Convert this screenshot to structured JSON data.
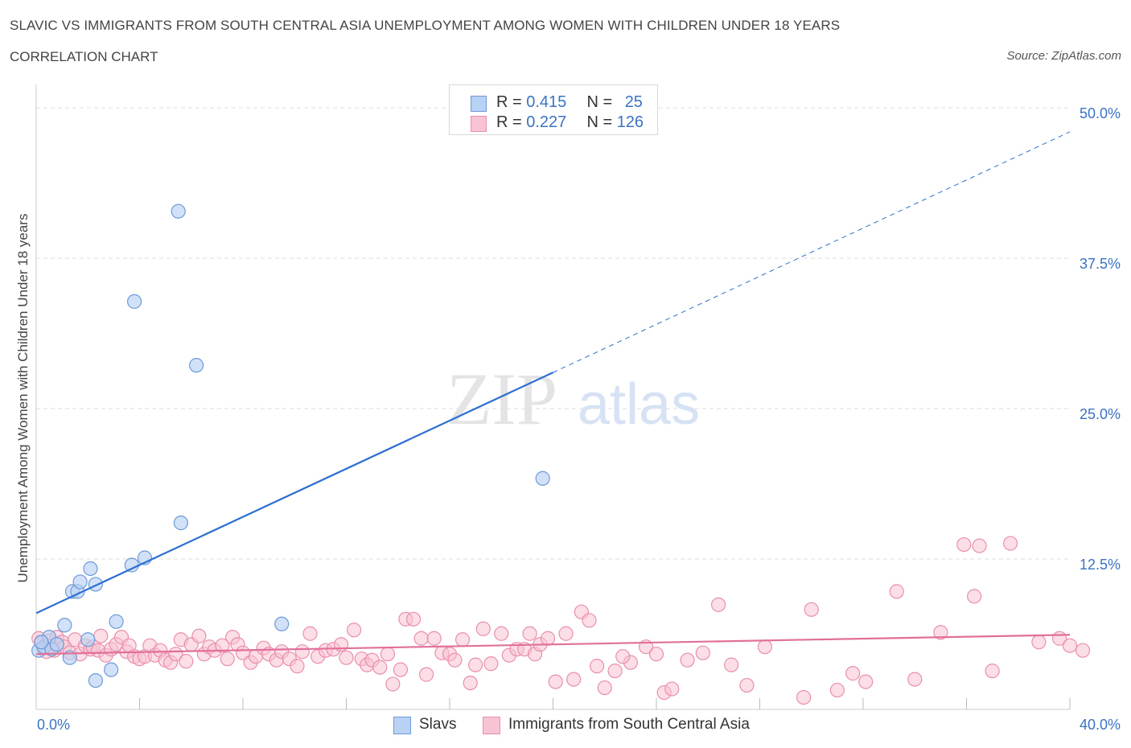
{
  "header": {
    "title": "SLAVIC VS IMMIGRANTS FROM SOUTH CENTRAL ASIA UNEMPLOYMENT AMONG WOMEN WITH CHILDREN UNDER 18 YEARS",
    "subtitle": "CORRELATION CHART",
    "source": "Source: ZipAtlas.com"
  },
  "watermark": {
    "zip": "ZIP",
    "atlas": "atlas"
  },
  "legend": {
    "slavs": {
      "r_label": "R = ",
      "r_value": "0.415",
      "n_label": "N = ",
      "n_value": "25"
    },
    "immigrants": {
      "r_label": "R = ",
      "r_value": "0.227",
      "n_label": "N = ",
      "n_value": "126"
    }
  },
  "colors": {
    "slavs_fill": "#b9d1f2",
    "slavs_stroke": "#6d9ad8",
    "slavs_line": "#2c6fd1",
    "imm_fill": "#f8c3d2",
    "imm_stroke": "#ea8fab",
    "imm_line": "#e07099",
    "axis_label": "#3a73c4",
    "grid": "#dddddd"
  },
  "chart_data": {
    "type": "scatter",
    "title": "SLAVIC VS IMMIGRANTS FROM SOUTH CENTRAL ASIA UNEMPLOYMENT AMONG WOMEN WITH CHILDREN UNDER 18 YEARS",
    "xlabel": "",
    "ylabel": "Unemployment Among Women with Children Under 18 years",
    "xlim": [
      0,
      40
    ],
    "ylim": [
      0,
      50
    ],
    "x_tick_labels": [
      "0.0%",
      "40.0%"
    ],
    "y_tick_labels": [
      "12.5%",
      "25.0%",
      "37.5%",
      "50.0%"
    ],
    "y_ticks": [
      12.5,
      25.0,
      37.5,
      50.0
    ],
    "grid": true,
    "legend_position": "top-center",
    "series": [
      {
        "name": "Slavs",
        "R": 0.415,
        "N": 25,
        "trend": {
          "x0": 0,
          "y0": 8.0,
          "x1": 20,
          "y1": 28.0,
          "dashed_to": [
            40,
            48.0
          ]
        },
        "points": [
          [
            0.1,
            4.9
          ],
          [
            0.3,
            5.2
          ],
          [
            0.5,
            6.0
          ],
          [
            0.6,
            5.0
          ],
          [
            0.8,
            5.4
          ],
          [
            1.1,
            7.0
          ],
          [
            1.3,
            4.3
          ],
          [
            1.4,
            9.8
          ],
          [
            1.6,
            9.8
          ],
          [
            1.7,
            10.6
          ],
          [
            2.0,
            5.8
          ],
          [
            2.1,
            11.7
          ],
          [
            2.3,
            10.4
          ],
          [
            2.3,
            2.4
          ],
          [
            2.9,
            3.3
          ],
          [
            3.1,
            7.3
          ],
          [
            3.7,
            12.0
          ],
          [
            3.8,
            33.9
          ],
          [
            4.2,
            12.6
          ],
          [
            5.5,
            41.4
          ],
          [
            5.6,
            15.5
          ],
          [
            6.2,
            28.6
          ],
          [
            9.5,
            7.1
          ],
          [
            19.6,
            19.2
          ],
          [
            0.2,
            5.6
          ]
        ]
      },
      {
        "name": "Immigrants from South Central Asia",
        "R": 0.227,
        "N": 126,
        "trend": {
          "x0": 0,
          "y0": 4.6,
          "x1": 40,
          "y1": 6.2
        },
        "points": [
          [
            0.1,
            5.9
          ],
          [
            0.2,
            5.5
          ],
          [
            0.3,
            5.1
          ],
          [
            0.4,
            4.8
          ],
          [
            0.5,
            5.7
          ],
          [
            0.6,
            5.3
          ],
          [
            0.7,
            4.9
          ],
          [
            0.8,
            6.0
          ],
          [
            1.0,
            5.6
          ],
          [
            1.1,
            5.2
          ],
          [
            1.3,
            4.7
          ],
          [
            1.5,
            5.8
          ],
          [
            1.7,
            4.6
          ],
          [
            1.9,
            5.3
          ],
          [
            2.1,
            5.0
          ],
          [
            2.2,
            5.2
          ],
          [
            2.4,
            4.9
          ],
          [
            2.5,
            6.1
          ],
          [
            2.7,
            4.5
          ],
          [
            2.9,
            5.0
          ],
          [
            3.1,
            5.4
          ],
          [
            3.3,
            6.0
          ],
          [
            3.5,
            4.8
          ],
          [
            3.6,
            5.3
          ],
          [
            3.8,
            4.4
          ],
          [
            4.0,
            4.2
          ],
          [
            4.2,
            4.4
          ],
          [
            4.4,
            5.3
          ],
          [
            4.6,
            4.5
          ],
          [
            4.8,
            4.9
          ],
          [
            5.0,
            4.1
          ],
          [
            5.2,
            3.9
          ],
          [
            5.4,
            4.6
          ],
          [
            5.6,
            5.8
          ],
          [
            5.8,
            4.0
          ],
          [
            6.0,
            5.4
          ],
          [
            6.3,
            6.1
          ],
          [
            6.5,
            4.6
          ],
          [
            6.7,
            5.2
          ],
          [
            6.9,
            4.9
          ],
          [
            7.2,
            5.3
          ],
          [
            7.4,
            4.2
          ],
          [
            7.6,
            6.0
          ],
          [
            7.8,
            5.4
          ],
          [
            8.0,
            4.7
          ],
          [
            8.3,
            3.9
          ],
          [
            8.5,
            4.4
          ],
          [
            8.8,
            5.1
          ],
          [
            9.0,
            4.6
          ],
          [
            9.3,
            4.1
          ],
          [
            9.5,
            4.8
          ],
          [
            9.8,
            4.2
          ],
          [
            10.1,
            3.6
          ],
          [
            10.3,
            4.8
          ],
          [
            10.6,
            6.3
          ],
          [
            10.9,
            4.4
          ],
          [
            11.2,
            4.9
          ],
          [
            11.5,
            5.0
          ],
          [
            11.8,
            5.4
          ],
          [
            12.0,
            4.3
          ],
          [
            12.3,
            6.6
          ],
          [
            12.6,
            4.2
          ],
          [
            12.8,
            3.7
          ],
          [
            13.0,
            4.1
          ],
          [
            13.3,
            3.5
          ],
          [
            13.6,
            4.6
          ],
          [
            13.8,
            2.1
          ],
          [
            14.1,
            3.3
          ],
          [
            14.3,
            7.5
          ],
          [
            14.6,
            7.5
          ],
          [
            14.9,
            5.9
          ],
          [
            15.1,
            2.9
          ],
          [
            15.4,
            5.9
          ],
          [
            15.7,
            4.7
          ],
          [
            16.0,
            4.6
          ],
          [
            16.2,
            4.1
          ],
          [
            16.5,
            5.8
          ],
          [
            16.8,
            2.2
          ],
          [
            17.0,
            3.7
          ],
          [
            17.3,
            6.7
          ],
          [
            17.6,
            3.8
          ],
          [
            18.0,
            6.3
          ],
          [
            18.3,
            4.5
          ],
          [
            18.6,
            5.0
          ],
          [
            18.9,
            5.0
          ],
          [
            19.1,
            6.3
          ],
          [
            19.3,
            4.6
          ],
          [
            19.5,
            5.4
          ],
          [
            19.8,
            5.9
          ],
          [
            20.1,
            2.3
          ],
          [
            20.5,
            6.3
          ],
          [
            20.8,
            2.5
          ],
          [
            21.1,
            8.1
          ],
          [
            21.4,
            7.4
          ],
          [
            21.7,
            3.6
          ],
          [
            22.0,
            1.8
          ],
          [
            22.4,
            3.2
          ],
          [
            23.0,
            3.9
          ],
          [
            23.6,
            5.2
          ],
          [
            24.0,
            4.6
          ],
          [
            24.3,
            1.4
          ],
          [
            24.6,
            1.7
          ],
          [
            25.2,
            4.1
          ],
          [
            25.8,
            4.7
          ],
          [
            26.4,
            8.7
          ],
          [
            26.9,
            3.7
          ],
          [
            27.5,
            2.0
          ],
          [
            28.2,
            5.2
          ],
          [
            30.0,
            8.3
          ],
          [
            31.6,
            3.0
          ],
          [
            32.1,
            2.3
          ],
          [
            33.3,
            9.8
          ],
          [
            35.0,
            6.4
          ],
          [
            36.3,
            9.4
          ],
          [
            37.0,
            3.2
          ],
          [
            35.9,
            13.7
          ],
          [
            36.5,
            13.6
          ],
          [
            37.7,
            13.8
          ],
          [
            39.6,
            5.9
          ],
          [
            40.0,
            5.3
          ],
          [
            40.5,
            4.9
          ],
          [
            38.8,
            5.6
          ],
          [
            29.7,
            1.0
          ],
          [
            34.0,
            2.5
          ],
          [
            31.0,
            1.6
          ],
          [
            22.7,
            4.4
          ]
        ]
      }
    ]
  },
  "bottom_legend": {
    "slavs": "Slavs",
    "immigrants": "Immigrants from South Central Asia"
  }
}
